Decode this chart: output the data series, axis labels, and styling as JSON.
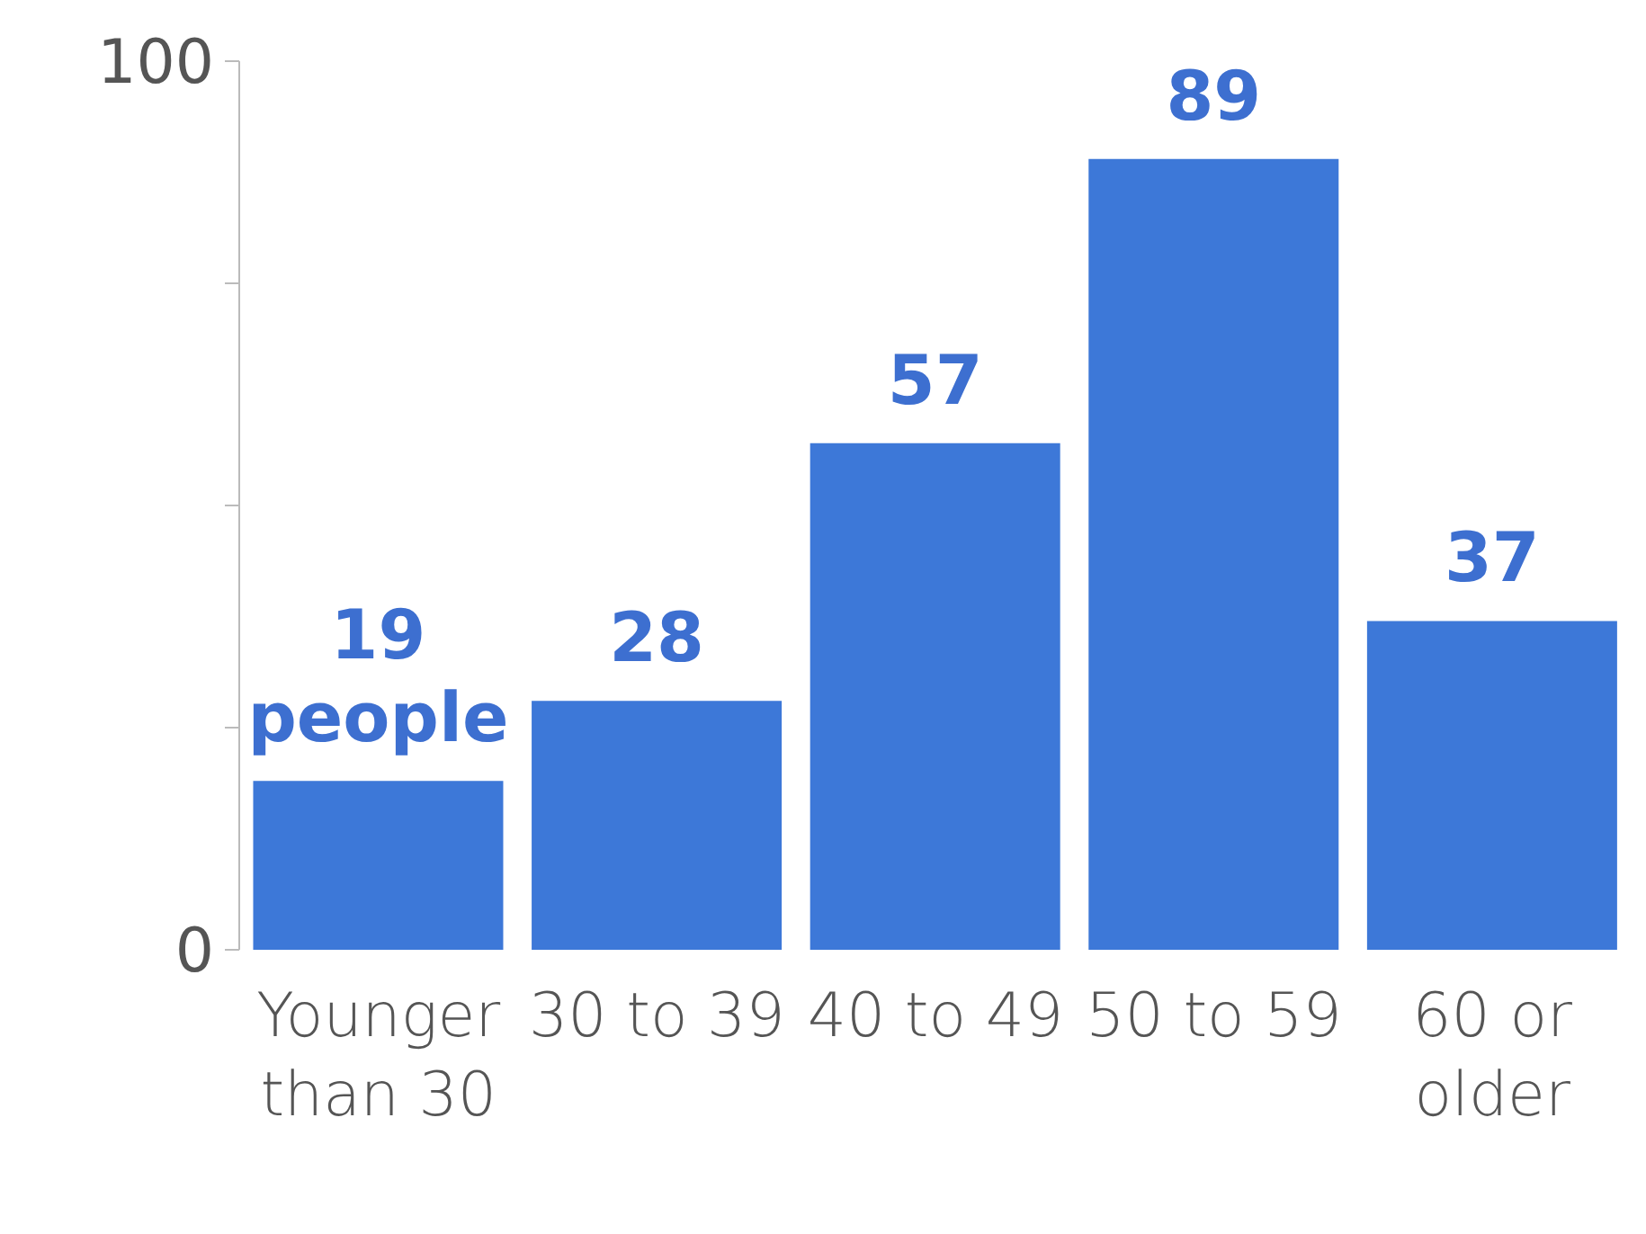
{
  "chart_data": {
    "type": "bar",
    "categories": [
      "Younger than 30",
      "30 to 39",
      "40 to 49",
      "50 to 59",
      "60 or older"
    ],
    "values": [
      19,
      28,
      57,
      89,
      37
    ],
    "value_labels": [
      "19 people",
      "28",
      "57",
      "89",
      "37"
    ],
    "color": "#3d78d8",
    "ylim": [
      0,
      100
    ],
    "yticks": [
      0,
      {
        "value": 25,
        "label": null
      },
      {
        "value": 50,
        "label": null
      },
      {
        "value": 75,
        "label": null
      },
      100
    ],
    "grid": false
  }
}
